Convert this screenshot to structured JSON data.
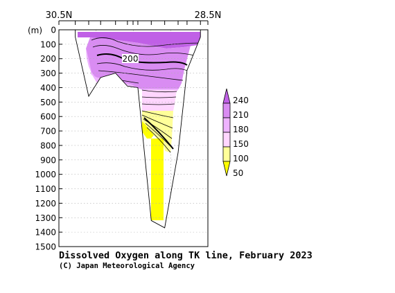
{
  "chart_data": {
    "type": "heatmap",
    "title": "Dissolved Oxygen along TK line, February 2023",
    "credit": "(C) Japan Meteorological Agency",
    "ylabel": "(m)",
    "x_left_label": "30.5N",
    "x_right_label": "28.5N",
    "ylim": [
      0,
      1500
    ],
    "y_ticks": [
      0,
      100,
      200,
      300,
      400,
      500,
      600,
      700,
      800,
      900,
      1000,
      1100,
      1200,
      1300,
      1400,
      1500
    ],
    "contour_label": "200",
    "grid": true,
    "colorbar": {
      "levels": [
        50,
        100,
        150,
        180,
        210,
        240
      ],
      "colors": [
        "#ffff00",
        "#ffff99",
        "#ffd6ff",
        "#eeb3ff",
        "#d98cf2",
        "#c060e6"
      ]
    },
    "stations": [
      {
        "x": 0.11,
        "bottom": 50
      },
      {
        "x": 0.2,
        "bottom": 460
      },
      {
        "x": 0.28,
        "bottom": 330
      },
      {
        "x": 0.38,
        "bottom": 300
      },
      {
        "x": 0.46,
        "bottom": 390
      },
      {
        "x": 0.53,
        "bottom": 400
      },
      {
        "x": 0.62,
        "bottom": 1320
      },
      {
        "x": 0.71,
        "bottom": 1370
      },
      {
        "x": 0.8,
        "bottom": 850
      },
      {
        "x": 0.86,
        "bottom": 280
      },
      {
        "x": 0.95,
        "bottom": 50
      }
    ],
    "layers": [
      {
        "min": 0,
        "max": 60,
        "value": "210-240"
      },
      {
        "min": 60,
        "max": 200,
        "value": "180-240"
      },
      {
        "min": 200,
        "max": 400,
        "value": "180-210"
      },
      {
        "min": 400,
        "max": 500,
        "value": "150-180"
      },
      {
        "min": 500,
        "max": 850,
        "value": "100-150"
      },
      {
        "min": 850,
        "max": 1310,
        "value": "50-100"
      }
    ]
  }
}
